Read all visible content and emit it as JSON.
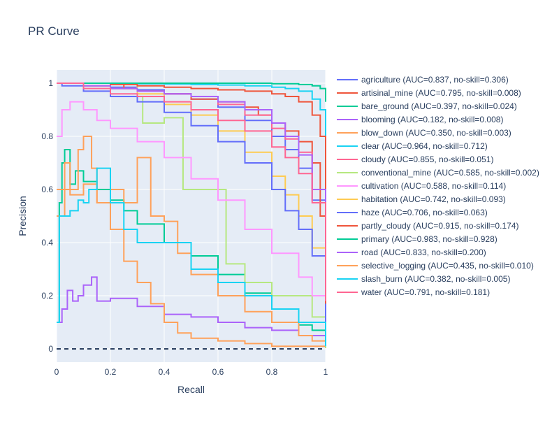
{
  "chart_data": {
    "type": "line",
    "title": "PR Curve",
    "xlabel": "Recall",
    "ylabel": "Precision",
    "xlim": [
      0,
      1
    ],
    "ylim": [
      -0.05,
      1.05
    ],
    "xticks": [
      0,
      0.2,
      0.4,
      0.6,
      0.8,
      1
    ],
    "xtick_labels": [
      "0",
      "0.2",
      "0.4",
      "0.6",
      "0.8",
      "1"
    ],
    "yticks": [
      0,
      0.2,
      0.4,
      0.6,
      0.8,
      1
    ],
    "ytick_labels": [
      "0",
      "0.2",
      "0.4",
      "0.6",
      "0.8",
      "1"
    ],
    "grid": true,
    "legend_position": "right",
    "baseline": {
      "y": 0,
      "style": "dashed",
      "color": "#2a3f5f"
    },
    "series": [
      {
        "name": "agriculture",
        "label": "agriculture   (AUC=0.837, no-skill=0.306)",
        "color": "#636efa",
        "x": [
          0,
          0.02,
          0.1,
          0.2,
          0.3,
          0.4,
          0.5,
          0.6,
          0.7,
          0.8,
          0.85,
          0.9,
          0.95,
          1.0
        ],
        "y": [
          1.0,
          0.99,
          0.99,
          0.985,
          0.975,
          0.96,
          0.94,
          0.91,
          0.86,
          0.8,
          0.75,
          0.68,
          0.56,
          0.3
        ]
      },
      {
        "name": "artisinal_mine",
        "label": "artisinal_mine   (AUC=0.795, no-skill=0.008)",
        "color": "#ef553b",
        "x": [
          0,
          0.05,
          0.15,
          0.25,
          0.3,
          0.4,
          0.5,
          0.6,
          0.7,
          0.75,
          0.8,
          0.85,
          0.9,
          0.95,
          0.98,
          1.0
        ],
        "y": [
          1.0,
          1.0,
          1.0,
          0.98,
          0.97,
          0.96,
          0.94,
          0.93,
          0.91,
          0.88,
          0.85,
          0.82,
          0.78,
          0.7,
          0.5,
          0.01
        ]
      },
      {
        "name": "bare_ground",
        "label": "bare_ground   (AUC=0.397, no-skill=0.024)",
        "color": "#00cc96",
        "x": [
          0,
          0.01,
          0.02,
          0.03,
          0.05,
          0.07,
          0.1,
          0.15,
          0.2,
          0.25,
          0.3,
          0.4,
          0.5,
          0.6,
          0.7,
          0.8,
          0.9,
          0.95,
          1.0
        ],
        "y": [
          0.1,
          0.55,
          0.7,
          0.75,
          0.62,
          0.67,
          0.63,
          0.6,
          0.56,
          0.52,
          0.47,
          0.4,
          0.35,
          0.28,
          0.21,
          0.15,
          0.09,
          0.07,
          0.02
        ]
      },
      {
        "name": "blooming",
        "label": "blooming   (AUC=0.182, no-skill=0.008)",
        "color": "#ab63fa",
        "x": [
          0,
          0.02,
          0.04,
          0.06,
          0.08,
          0.1,
          0.13,
          0.15,
          0.2,
          0.3,
          0.4,
          0.5,
          0.6,
          0.7,
          0.8,
          0.9,
          1.0
        ],
        "y": [
          0.1,
          0.15,
          0.22,
          0.18,
          0.2,
          0.24,
          0.27,
          0.18,
          0.19,
          0.16,
          0.13,
          0.12,
          0.1,
          0.08,
          0.07,
          0.05,
          0.01
        ]
      },
      {
        "name": "blow_down",
        "label": "blow_down   (AUC=0.350, no-skill=0.003)",
        "color": "#ffa15a",
        "x": [
          0,
          0.03,
          0.05,
          0.08,
          0.1,
          0.13,
          0.15,
          0.2,
          0.25,
          0.3,
          0.35,
          0.4,
          0.45,
          0.5,
          0.6,
          0.7,
          0.8,
          0.9,
          1.0
        ],
        "y": [
          0.5,
          0.7,
          0.6,
          0.75,
          0.8,
          0.68,
          0.55,
          0.45,
          0.33,
          0.25,
          0.17,
          0.1,
          0.06,
          0.04,
          0.03,
          0.02,
          0.01,
          0.01,
          0.003
        ]
      },
      {
        "name": "clear",
        "label": "clear   (AUC=0.964, no-skill=0.712)",
        "color": "#19d3f3",
        "x": [
          0,
          0.1,
          0.2,
          0.3,
          0.4,
          0.5,
          0.6,
          0.7,
          0.8,
          0.85,
          0.9,
          0.95,
          0.98,
          1.0
        ],
        "y": [
          1.0,
          1.0,
          1.0,
          0.998,
          0.997,
          0.995,
          0.993,
          0.99,
          0.985,
          0.98,
          0.97,
          0.94,
          0.9,
          0.72
        ]
      },
      {
        "name": "cloudy",
        "label": "cloudy   (AUC=0.855, no-skill=0.051)",
        "color": "#ff6692",
        "x": [
          0,
          0.1,
          0.2,
          0.3,
          0.4,
          0.5,
          0.6,
          0.7,
          0.8,
          0.85,
          0.9,
          0.95,
          1.0
        ],
        "y": [
          1.0,
          0.99,
          0.98,
          0.97,
          0.96,
          0.95,
          0.92,
          0.88,
          0.83,
          0.79,
          0.74,
          0.6,
          0.05
        ]
      },
      {
        "name": "conventional_mine",
        "label": "conventional_mine   (AUC=0.585, no-skill=0.002)",
        "color": "#b6e880",
        "x": [
          0,
          0.1,
          0.2,
          0.3,
          0.32,
          0.4,
          0.47,
          0.55,
          0.63,
          0.7,
          0.8,
          0.9,
          0.95,
          1.0
        ],
        "y": [
          1.0,
          1.0,
          1.0,
          0.95,
          0.85,
          0.87,
          0.6,
          0.6,
          0.32,
          0.25,
          0.2,
          0.2,
          0.12,
          0.003
        ]
      },
      {
        "name": "cultivation",
        "label": "cultivation   (AUC=0.588, no-skill=0.114)",
        "color": "#ff97ff",
        "x": [
          0,
          0.02,
          0.05,
          0.1,
          0.15,
          0.2,
          0.3,
          0.4,
          0.5,
          0.6,
          0.7,
          0.8,
          0.9,
          0.95,
          1.0
        ],
        "y": [
          0.8,
          0.9,
          0.93,
          0.9,
          0.86,
          0.83,
          0.78,
          0.72,
          0.64,
          0.56,
          0.45,
          0.36,
          0.27,
          0.2,
          0.11
        ]
      },
      {
        "name": "habitation",
        "label": "habitation   (AUC=0.742, no-skill=0.093)",
        "color": "#fecb52",
        "x": [
          0,
          0.1,
          0.2,
          0.3,
          0.4,
          0.5,
          0.6,
          0.7,
          0.8,
          0.85,
          0.9,
          0.95,
          1.0
        ],
        "y": [
          1.0,
          0.99,
          0.98,
          0.96,
          0.92,
          0.88,
          0.82,
          0.74,
          0.65,
          0.58,
          0.5,
          0.38,
          0.09
        ]
      },
      {
        "name": "haze",
        "label": "haze   (AUC=0.706, no-skill=0.063)",
        "color": "#636efa",
        "x": [
          0,
          0.1,
          0.2,
          0.3,
          0.4,
          0.5,
          0.6,
          0.7,
          0.8,
          0.85,
          0.9,
          0.95,
          1.0
        ],
        "y": [
          1.0,
          0.97,
          0.95,
          0.93,
          0.89,
          0.84,
          0.78,
          0.7,
          0.6,
          0.52,
          0.45,
          0.35,
          0.06
        ]
      },
      {
        "name": "partly_cloudy",
        "label": "partly_cloudy   (AUC=0.915, no-skill=0.174)",
        "color": "#ef553b",
        "x": [
          0,
          0.1,
          0.2,
          0.3,
          0.4,
          0.5,
          0.6,
          0.7,
          0.8,
          0.85,
          0.9,
          0.95,
          0.98,
          1.0
        ],
        "y": [
          1.0,
          1.0,
          0.995,
          0.99,
          0.985,
          0.98,
          0.975,
          0.97,
          0.96,
          0.95,
          0.93,
          0.88,
          0.8,
          0.17
        ]
      },
      {
        "name": "primary",
        "label": "primary   (AUC=0.983, no-skill=0.928)",
        "color": "#00cc96",
        "x": [
          0,
          0.2,
          0.4,
          0.6,
          0.8,
          0.9,
          0.95,
          0.98,
          1.0
        ],
        "y": [
          1.0,
          1.0,
          1.0,
          1.0,
          0.998,
          0.995,
          0.99,
          0.98,
          0.93
        ]
      },
      {
        "name": "road",
        "label": "road   (AUC=0.833, no-skill=0.200)",
        "color": "#ab63fa",
        "x": [
          0,
          0.1,
          0.2,
          0.3,
          0.4,
          0.5,
          0.6,
          0.7,
          0.8,
          0.85,
          0.9,
          0.95,
          1.0
        ],
        "y": [
          1.0,
          0.99,
          0.98,
          0.97,
          0.96,
          0.95,
          0.93,
          0.9,
          0.85,
          0.8,
          0.73,
          0.6,
          0.2
        ]
      },
      {
        "name": "selective_logging",
        "label": "selective_logging   (AUC=0.435, no-skill=0.010)",
        "color": "#ffa15a",
        "x": [
          0,
          0.05,
          0.1,
          0.15,
          0.2,
          0.25,
          0.3,
          0.35,
          0.4,
          0.45,
          0.5,
          0.6,
          0.7,
          0.8,
          0.9,
          0.95,
          1.0
        ],
        "y": [
          0.6,
          0.58,
          0.62,
          0.55,
          0.6,
          0.55,
          0.72,
          0.5,
          0.48,
          0.36,
          0.28,
          0.2,
          0.14,
          0.1,
          0.05,
          0.03,
          0.01
        ]
      },
      {
        "name": "slash_burn",
        "label": "slash_burn   (AUC=0.382, no-skill=0.005)",
        "color": "#19d3f3",
        "x": [
          0,
          0.01,
          0.05,
          0.08,
          0.1,
          0.12,
          0.15,
          0.2,
          0.25,
          0.3,
          0.4,
          0.5,
          0.6,
          0.7,
          0.8,
          0.9,
          1.0
        ],
        "y": [
          0.1,
          0.5,
          0.52,
          0.56,
          0.55,
          0.6,
          0.68,
          0.55,
          0.45,
          0.4,
          0.4,
          0.3,
          0.25,
          0.2,
          0.15,
          0.1,
          0.01
        ]
      },
      {
        "name": "water",
        "label": "water   (AUC=0.791, no-skill=0.181)",
        "color": "#ff6692",
        "x": [
          0,
          0.1,
          0.2,
          0.3,
          0.4,
          0.5,
          0.6,
          0.7,
          0.8,
          0.85,
          0.9,
          0.95,
          1.0
        ],
        "y": [
          1.0,
          0.98,
          0.96,
          0.95,
          0.93,
          0.9,
          0.86,
          0.82,
          0.76,
          0.72,
          0.66,
          0.55,
          0.18
        ]
      }
    ]
  }
}
